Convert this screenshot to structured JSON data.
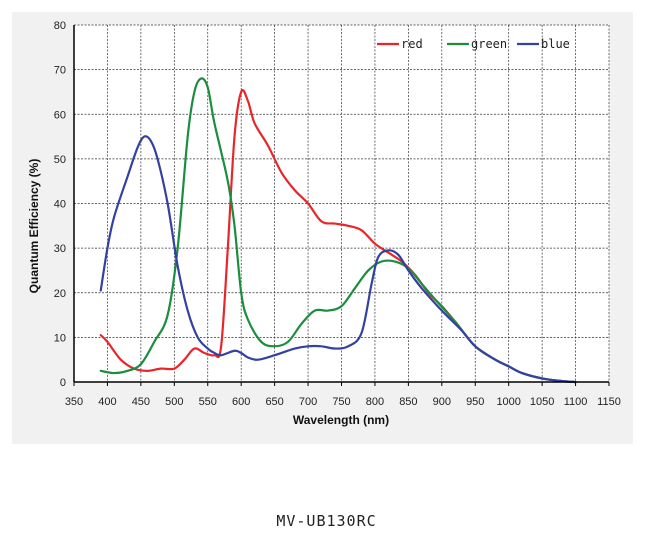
{
  "caption": "MV-UB130RC",
  "chart_data": {
    "type": "line",
    "xlabel": "Wavelength (nm)",
    "ylabel": "Quantum Efficiency (%)",
    "xlim": [
      350,
      1150
    ],
    "ylim": [
      0,
      80
    ],
    "x_ticks": [
      350,
      400,
      450,
      500,
      550,
      600,
      650,
      700,
      750,
      800,
      850,
      900,
      950,
      1000,
      1050,
      1100,
      1150
    ],
    "y_ticks": [
      0,
      10,
      20,
      30,
      40,
      50,
      60,
      70,
      80
    ],
    "grid": true,
    "legend_position": "top-right",
    "series": [
      {
        "name": "red",
        "color": "#e8262a",
        "points": [
          [
            390,
            10.5
          ],
          [
            400,
            9
          ],
          [
            420,
            5
          ],
          [
            440,
            3
          ],
          [
            460,
            2.5
          ],
          [
            480,
            3
          ],
          [
            500,
            3
          ],
          [
            515,
            5
          ],
          [
            530,
            7.5
          ],
          [
            545,
            6.5
          ],
          [
            560,
            6
          ],
          [
            570,
            8
          ],
          [
            580,
            30
          ],
          [
            590,
            55
          ],
          [
            600,
            65
          ],
          [
            610,
            63
          ],
          [
            620,
            58
          ],
          [
            640,
            53
          ],
          [
            660,
            47
          ],
          [
            680,
            43
          ],
          [
            700,
            40
          ],
          [
            720,
            36
          ],
          [
            740,
            35.5
          ],
          [
            760,
            35
          ],
          [
            780,
            34
          ],
          [
            800,
            31
          ],
          [
            820,
            29
          ],
          [
            840,
            27
          ],
          [
            860,
            24
          ],
          [
            880,
            20
          ],
          [
            900,
            17
          ],
          [
            920,
            13.5
          ],
          [
            950,
            8
          ],
          [
            980,
            5
          ],
          [
            1000,
            3.5
          ],
          [
            1020,
            2
          ],
          [
            1050,
            0.8
          ],
          [
            1080,
            0.2
          ],
          [
            1100,
            0
          ]
        ]
      },
      {
        "name": "green",
        "color": "#1a8e3c",
        "points": [
          [
            390,
            2.5
          ],
          [
            410,
            2
          ],
          [
            430,
            2.5
          ],
          [
            450,
            4
          ],
          [
            470,
            9
          ],
          [
            490,
            15
          ],
          [
            505,
            30
          ],
          [
            520,
            55
          ],
          [
            530,
            65
          ],
          [
            540,
            68
          ],
          [
            550,
            66
          ],
          [
            560,
            58
          ],
          [
            580,
            45
          ],
          [
            590,
            35
          ],
          [
            600,
            20
          ],
          [
            610,
            14
          ],
          [
            630,
            9
          ],
          [
            650,
            8
          ],
          [
            670,
            9
          ],
          [
            690,
            13
          ],
          [
            710,
            16
          ],
          [
            730,
            16
          ],
          [
            750,
            17
          ],
          [
            770,
            21
          ],
          [
            790,
            25
          ],
          [
            810,
            27
          ],
          [
            830,
            27
          ],
          [
            850,
            25.5
          ],
          [
            870,
            22
          ],
          [
            890,
            18.5
          ],
          [
            920,
            13.5
          ],
          [
            950,
            8
          ],
          [
            980,
            5
          ],
          [
            1000,
            3.5
          ],
          [
            1020,
            2
          ],
          [
            1050,
            0.8
          ],
          [
            1080,
            0.2
          ],
          [
            1100,
            0
          ]
        ]
      },
      {
        "name": "blue",
        "color": "#3341a3",
        "points": [
          [
            390,
            20.5
          ],
          [
            400,
            30
          ],
          [
            410,
            37
          ],
          [
            430,
            46
          ],
          [
            445,
            52.5
          ],
          [
            455,
            55
          ],
          [
            465,
            54
          ],
          [
            475,
            50
          ],
          [
            490,
            40
          ],
          [
            505,
            26
          ],
          [
            520,
            16
          ],
          [
            535,
            10
          ],
          [
            550,
            7.5
          ],
          [
            560,
            6.5
          ],
          [
            570,
            6
          ],
          [
            590,
            7
          ],
          [
            600,
            6.5
          ],
          [
            610,
            5.5
          ],
          [
            625,
            5
          ],
          [
            650,
            6
          ],
          [
            680,
            7.5
          ],
          [
            700,
            8
          ],
          [
            720,
            8
          ],
          [
            740,
            7.5
          ],
          [
            760,
            8
          ],
          [
            780,
            11
          ],
          [
            795,
            22
          ],
          [
            805,
            28
          ],
          [
            820,
            29.5
          ],
          [
            835,
            28.5
          ],
          [
            850,
            25
          ],
          [
            870,
            21
          ],
          [
            900,
            16
          ],
          [
            930,
            11.5
          ],
          [
            950,
            8
          ],
          [
            980,
            5
          ],
          [
            1000,
            3.5
          ],
          [
            1020,
            2
          ],
          [
            1050,
            0.8
          ],
          [
            1080,
            0.2
          ],
          [
            1100,
            0
          ]
        ]
      }
    ]
  }
}
